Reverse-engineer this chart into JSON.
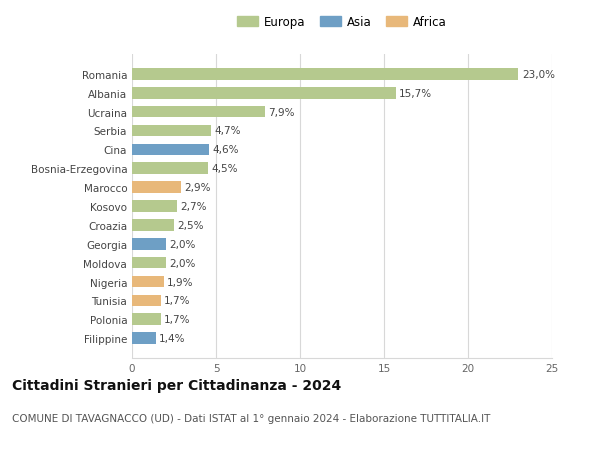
{
  "categories": [
    "Filippine",
    "Polonia",
    "Tunisia",
    "Nigeria",
    "Moldova",
    "Georgia",
    "Croazia",
    "Kosovo",
    "Marocco",
    "Bosnia-Erzegovina",
    "Cina",
    "Serbia",
    "Ucraina",
    "Albania",
    "Romania"
  ],
  "values": [
    1.4,
    1.7,
    1.7,
    1.9,
    2.0,
    2.0,
    2.5,
    2.7,
    2.9,
    4.5,
    4.6,
    4.7,
    7.9,
    15.7,
    23.0
  ],
  "labels": [
    "1,4%",
    "1,7%",
    "1,7%",
    "1,9%",
    "2,0%",
    "2,0%",
    "2,5%",
    "2,7%",
    "2,9%",
    "4,5%",
    "4,6%",
    "4,7%",
    "7,9%",
    "15,7%",
    "23,0%"
  ],
  "continents": [
    "Asia",
    "Europa",
    "Africa",
    "Africa",
    "Europa",
    "Asia",
    "Europa",
    "Europa",
    "Africa",
    "Europa",
    "Asia",
    "Europa",
    "Europa",
    "Europa",
    "Europa"
  ],
  "color_map": {
    "Europa": "#b5c98e",
    "Asia": "#6e9fc5",
    "Africa": "#e8b87a"
  },
  "legend_items": [
    {
      "label": "Europa",
      "color": "#b5c98e"
    },
    {
      "label": "Asia",
      "color": "#6e9fc5"
    },
    {
      "label": "Africa",
      "color": "#e8b87a"
    }
  ],
  "title": "Cittadini Stranieri per Cittadinanza - 2024",
  "subtitle": "COMUNE DI TAVAGNACCO (UD) - Dati ISTAT al 1° gennaio 2024 - Elaborazione TUTTITALIA.IT",
  "xlim": [
    0,
    25
  ],
  "xticks": [
    0,
    5,
    10,
    15,
    20,
    25
  ],
  "background_color": "#ffffff",
  "grid_color": "#d8d8d8",
  "bar_height": 0.62,
  "title_fontsize": 10,
  "subtitle_fontsize": 7.5,
  "label_fontsize": 7.5,
  "tick_fontsize": 7.5,
  "legend_fontsize": 8.5
}
